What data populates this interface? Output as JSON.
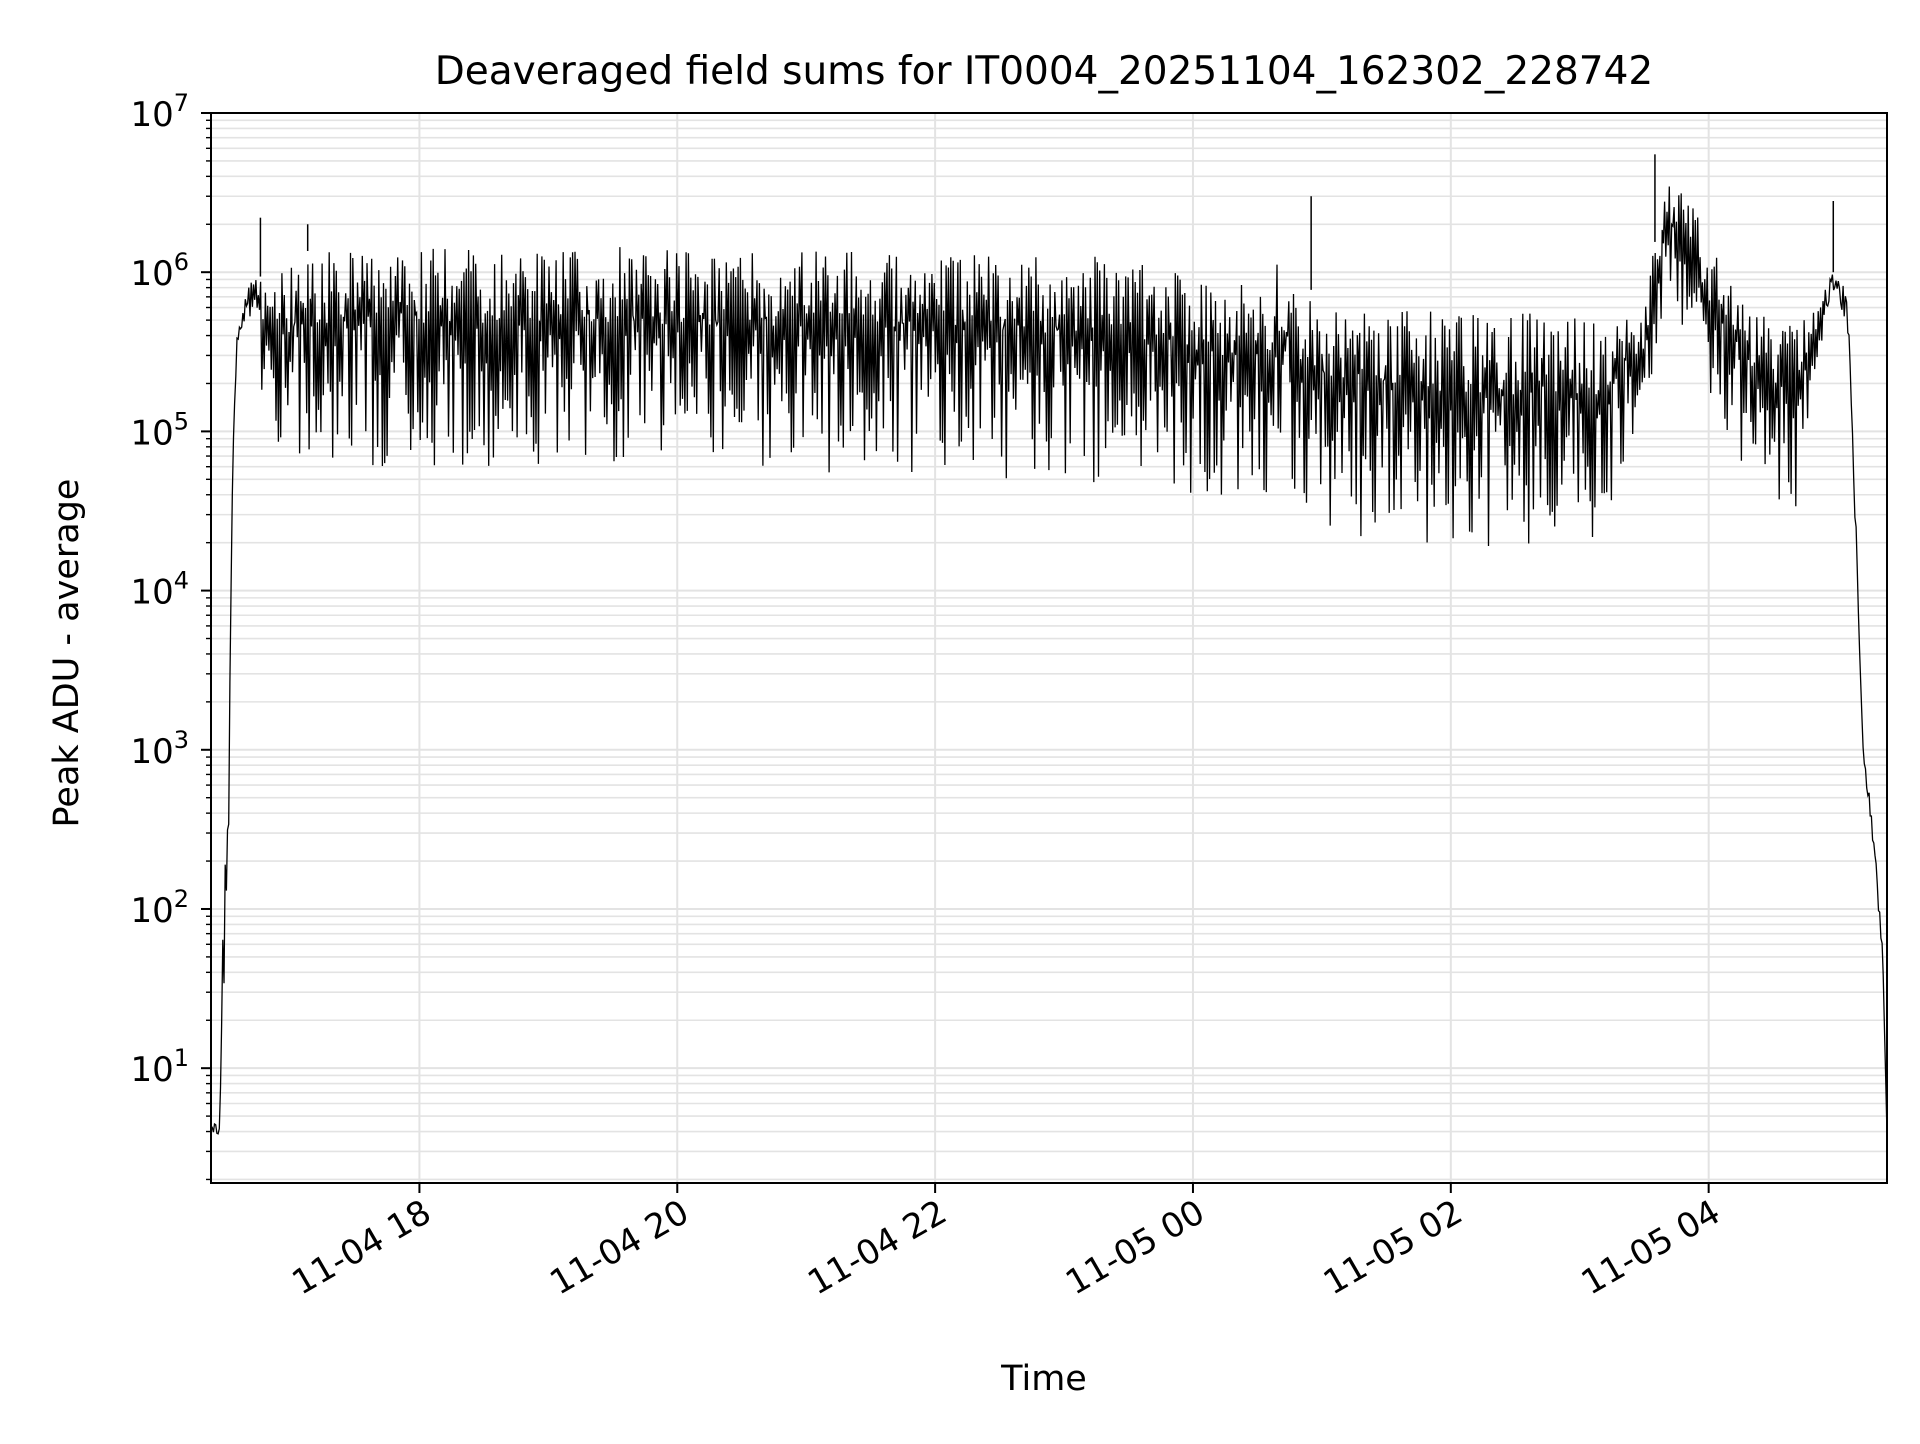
{
  "chart_data": {
    "type": "line",
    "title": "Deaveraged field sums for IT0004_20251104_162302_228742",
    "xlabel": "Time",
    "ylabel": "Peak ADU - average",
    "y_scale": "log",
    "xlim": [
      "11-04 16:23",
      "11-05 05:23"
    ],
    "ylim": [
      1.9,
      10000000
    ],
    "x_ticks": [
      "11-04 18",
      "11-04 20",
      "11-04 22",
      "11-05 00",
      "11-05 02",
      "11-05 04"
    ],
    "x_tick_rotation_deg": 30,
    "y_ticks": [
      {
        "base": "10",
        "exp": "1",
        "value": 10
      },
      {
        "base": "10",
        "exp": "2",
        "value": 100
      },
      {
        "base": "10",
        "exp": "3",
        "value": 1000
      },
      {
        "base": "10",
        "exp": "4",
        "value": 10000
      },
      {
        "base": "10",
        "exp": "5",
        "value": 100000
      },
      {
        "base": "10",
        "exp": "6",
        "value": 1000000
      },
      {
        "base": "10",
        "exp": "7",
        "value": 10000000
      }
    ],
    "grid": "on (major and minor)",
    "line_color": "#000000",
    "series": [
      {
        "x": [
          "11-04 16:23",
          "11-04 16:27",
          "11-04 16:29",
          "11-04 16:31",
          "11-04 16:33",
          "11-04 16:35",
          "11-04 16:38",
          "11-04 16:43",
          "11-04 16:48",
          "11-04 16:55",
          "11-04 17:00",
          "11-04 17:05",
          "11-04 17:10",
          "11-04 17:20",
          "11-04 17:40",
          "11-04 18:00",
          "11-04 18:30",
          "11-04 19:00",
          "11-04 19:30",
          "11-04 20:00",
          "11-04 20:30",
          "11-04 21:00",
          "11-04 21:30",
          "11-04 22:00",
          "11-04 22:30",
          "11-04 23:00",
          "11-04 23:30",
          "11-04 23:50",
          "11-05 00:10",
          "11-05 00:30",
          "11-05 00:45",
          "11-05 00:50",
          "11-05 01:00",
          "11-05 01:10",
          "11-05 01:20",
          "11-05 01:40",
          "11-05 02:00",
          "11-05 02:20",
          "11-05 02:40",
          "11-05 03:00",
          "11-05 03:10",
          "11-05 03:20",
          "11-05 03:30",
          "11-05 03:40",
          "11-05 03:50",
          "11-05 04:00",
          "11-05 04:15",
          "11-05 04:30",
          "11-05 04:40",
          "11-05 04:50",
          "11-05 04:57",
          "11-05 05:00",
          "11-05 05:05",
          "11-05 05:08",
          "11-05 05:12",
          "11-05 05:15",
          "11-05 05:18",
          "11-05 05:21",
          "11-05 05:23"
        ],
        "y_upper": [
          4.5,
          4.5,
          180,
          420,
          80000,
          400000,
          700000,
          1000000,
          900000,
          1100000,
          1200000,
          1300000,
          1400000,
          1400000,
          1400000,
          1450000,
          1400000,
          1400000,
          1450000,
          1400000,
          1350000,
          1350000,
          1350000,
          1300000,
          1300000,
          1300000,
          1200000,
          1000000,
          900000,
          850000,
          1400000,
          800000,
          750000,
          700000,
          650000,
          600000,
          550000,
          550000,
          600000,
          550000,
          500000,
          550000,
          600000,
          4000000,
          3500000,
          1500000,
          700000,
          500000,
          450000,
          600000,
          1000000,
          1000000,
          700000,
          50000,
          1000,
          500,
          200,
          60,
          4
        ],
        "y_lower": [
          3.8,
          3.8,
          25,
          150,
          50000,
          300000,
          500000,
          400000,
          120000,
          70000,
          60000,
          60000,
          60000,
          60000,
          60000,
          60000,
          60000,
          60000,
          60000,
          60000,
          55000,
          55000,
          55000,
          55000,
          50000,
          50000,
          45000,
          40000,
          40000,
          35000,
          30000,
          28000,
          25000,
          22000,
          20000,
          20000,
          18000,
          18000,
          18000,
          20000,
          22000,
          60000,
          100000,
          500000,
          400000,
          100000,
          60000,
          35000,
          30000,
          200000,
          700000,
          700000,
          400000,
          30000,
          800,
          400,
          150,
          40,
          3.8
        ]
      }
    ],
    "spikes": [
      {
        "x": "11-04 16:46",
        "y": 2200000
      },
      {
        "x": "11-04 17:08",
        "y": 2000000
      },
      {
        "x": "11-05 00:55",
        "y": 3000000
      },
      {
        "x": "11-05 03:35",
        "y": 5500000
      },
      {
        "x": "11-05 04:58",
        "y": 2800000
      }
    ]
  }
}
